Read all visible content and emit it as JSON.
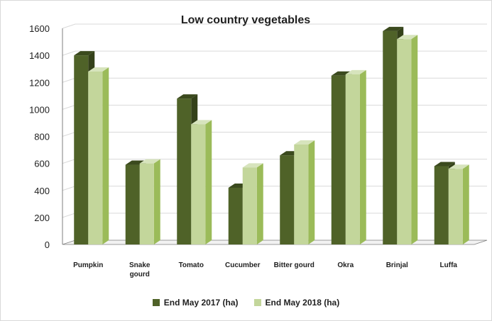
{
  "chart_data": {
    "type": "bar",
    "title": "Low country vegetables",
    "xlabel": "",
    "ylabel": "",
    "ylim": [
      0,
      1600
    ],
    "yticks": [
      "0",
      "200",
      "400",
      "600",
      "800",
      "1000",
      "1200",
      "1400",
      "1600"
    ],
    "categories": [
      "Pumpkin",
      "Snake gourd",
      "Tomato",
      "Cucumber",
      "Bitter gourd",
      "Okra",
      "Brinjal",
      "Luffa"
    ],
    "series": [
      {
        "name": "End May 2017 (ha)",
        "values": [
          1400,
          590,
          1080,
          420,
          660,
          1250,
          1580,
          580
        ]
      },
      {
        "name": "End May 2018 (ha)",
        "values": [
          1280,
          600,
          890,
          570,
          740,
          1260,
          1520,
          560
        ]
      }
    ],
    "colors": {
      "series_2017": "#4f6228",
      "series_2017_top": "#3b4a1e",
      "series_2017_side": "#34411a",
      "series_2018": "#c3d69b",
      "series_2018_top": "#d7e4bd",
      "series_2018_side": "#9bbb59",
      "grid": "#d9d9d9",
      "axis": "#7f7f7f"
    },
    "grid": true,
    "legend_position": "bottom"
  }
}
